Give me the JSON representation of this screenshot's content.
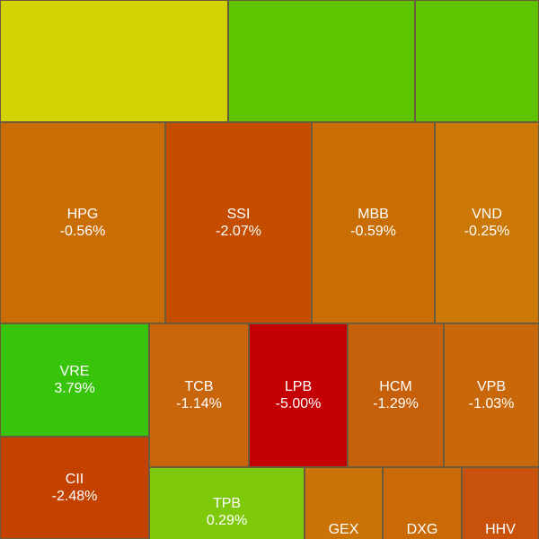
{
  "treemap": {
    "tiles": [
      {
        "symbol": "",
        "change": "",
        "color": "#d2d200"
      },
      {
        "symbol": "",
        "change": "",
        "color": "#5ec400"
      },
      {
        "symbol": "",
        "change": "",
        "color": "#5ec400"
      },
      {
        "symbol": "HPG",
        "change": "-0.56%",
        "color": "#c96e05"
      },
      {
        "symbol": "SSI",
        "change": "-2.07%",
        "color": "#c44d00"
      },
      {
        "symbol": "MBB",
        "change": "-0.59%",
        "color": "#c96e05"
      },
      {
        "symbol": "VND",
        "change": "-0.25%",
        "color": "#cb7807"
      },
      {
        "symbol": "VRE",
        "change": "3.79%",
        "color": "#39c40c"
      },
      {
        "symbol": "TCB",
        "change": "-1.14%",
        "color": "#c9650a"
      },
      {
        "symbol": "LPB",
        "change": "-5.00%",
        "color": "#c40004"
      },
      {
        "symbol": "HCM",
        "change": "-1.29%",
        "color": "#c7600a"
      },
      {
        "symbol": "VPB",
        "change": "-1.03%",
        "color": "#c9680a"
      },
      {
        "symbol": "CII",
        "change": "-2.48%",
        "color": "#c44200"
      },
      {
        "symbol": "TPB",
        "change": "0.29%",
        "color": "#7ec90b"
      },
      {
        "symbol": "GEX",
        "change": "",
        "color": "#cb7307"
      },
      {
        "symbol": "DXG",
        "change": "",
        "color": "#c96a07"
      },
      {
        "symbol": "HHV",
        "change": "",
        "color": "#c8520b"
      }
    ]
  }
}
